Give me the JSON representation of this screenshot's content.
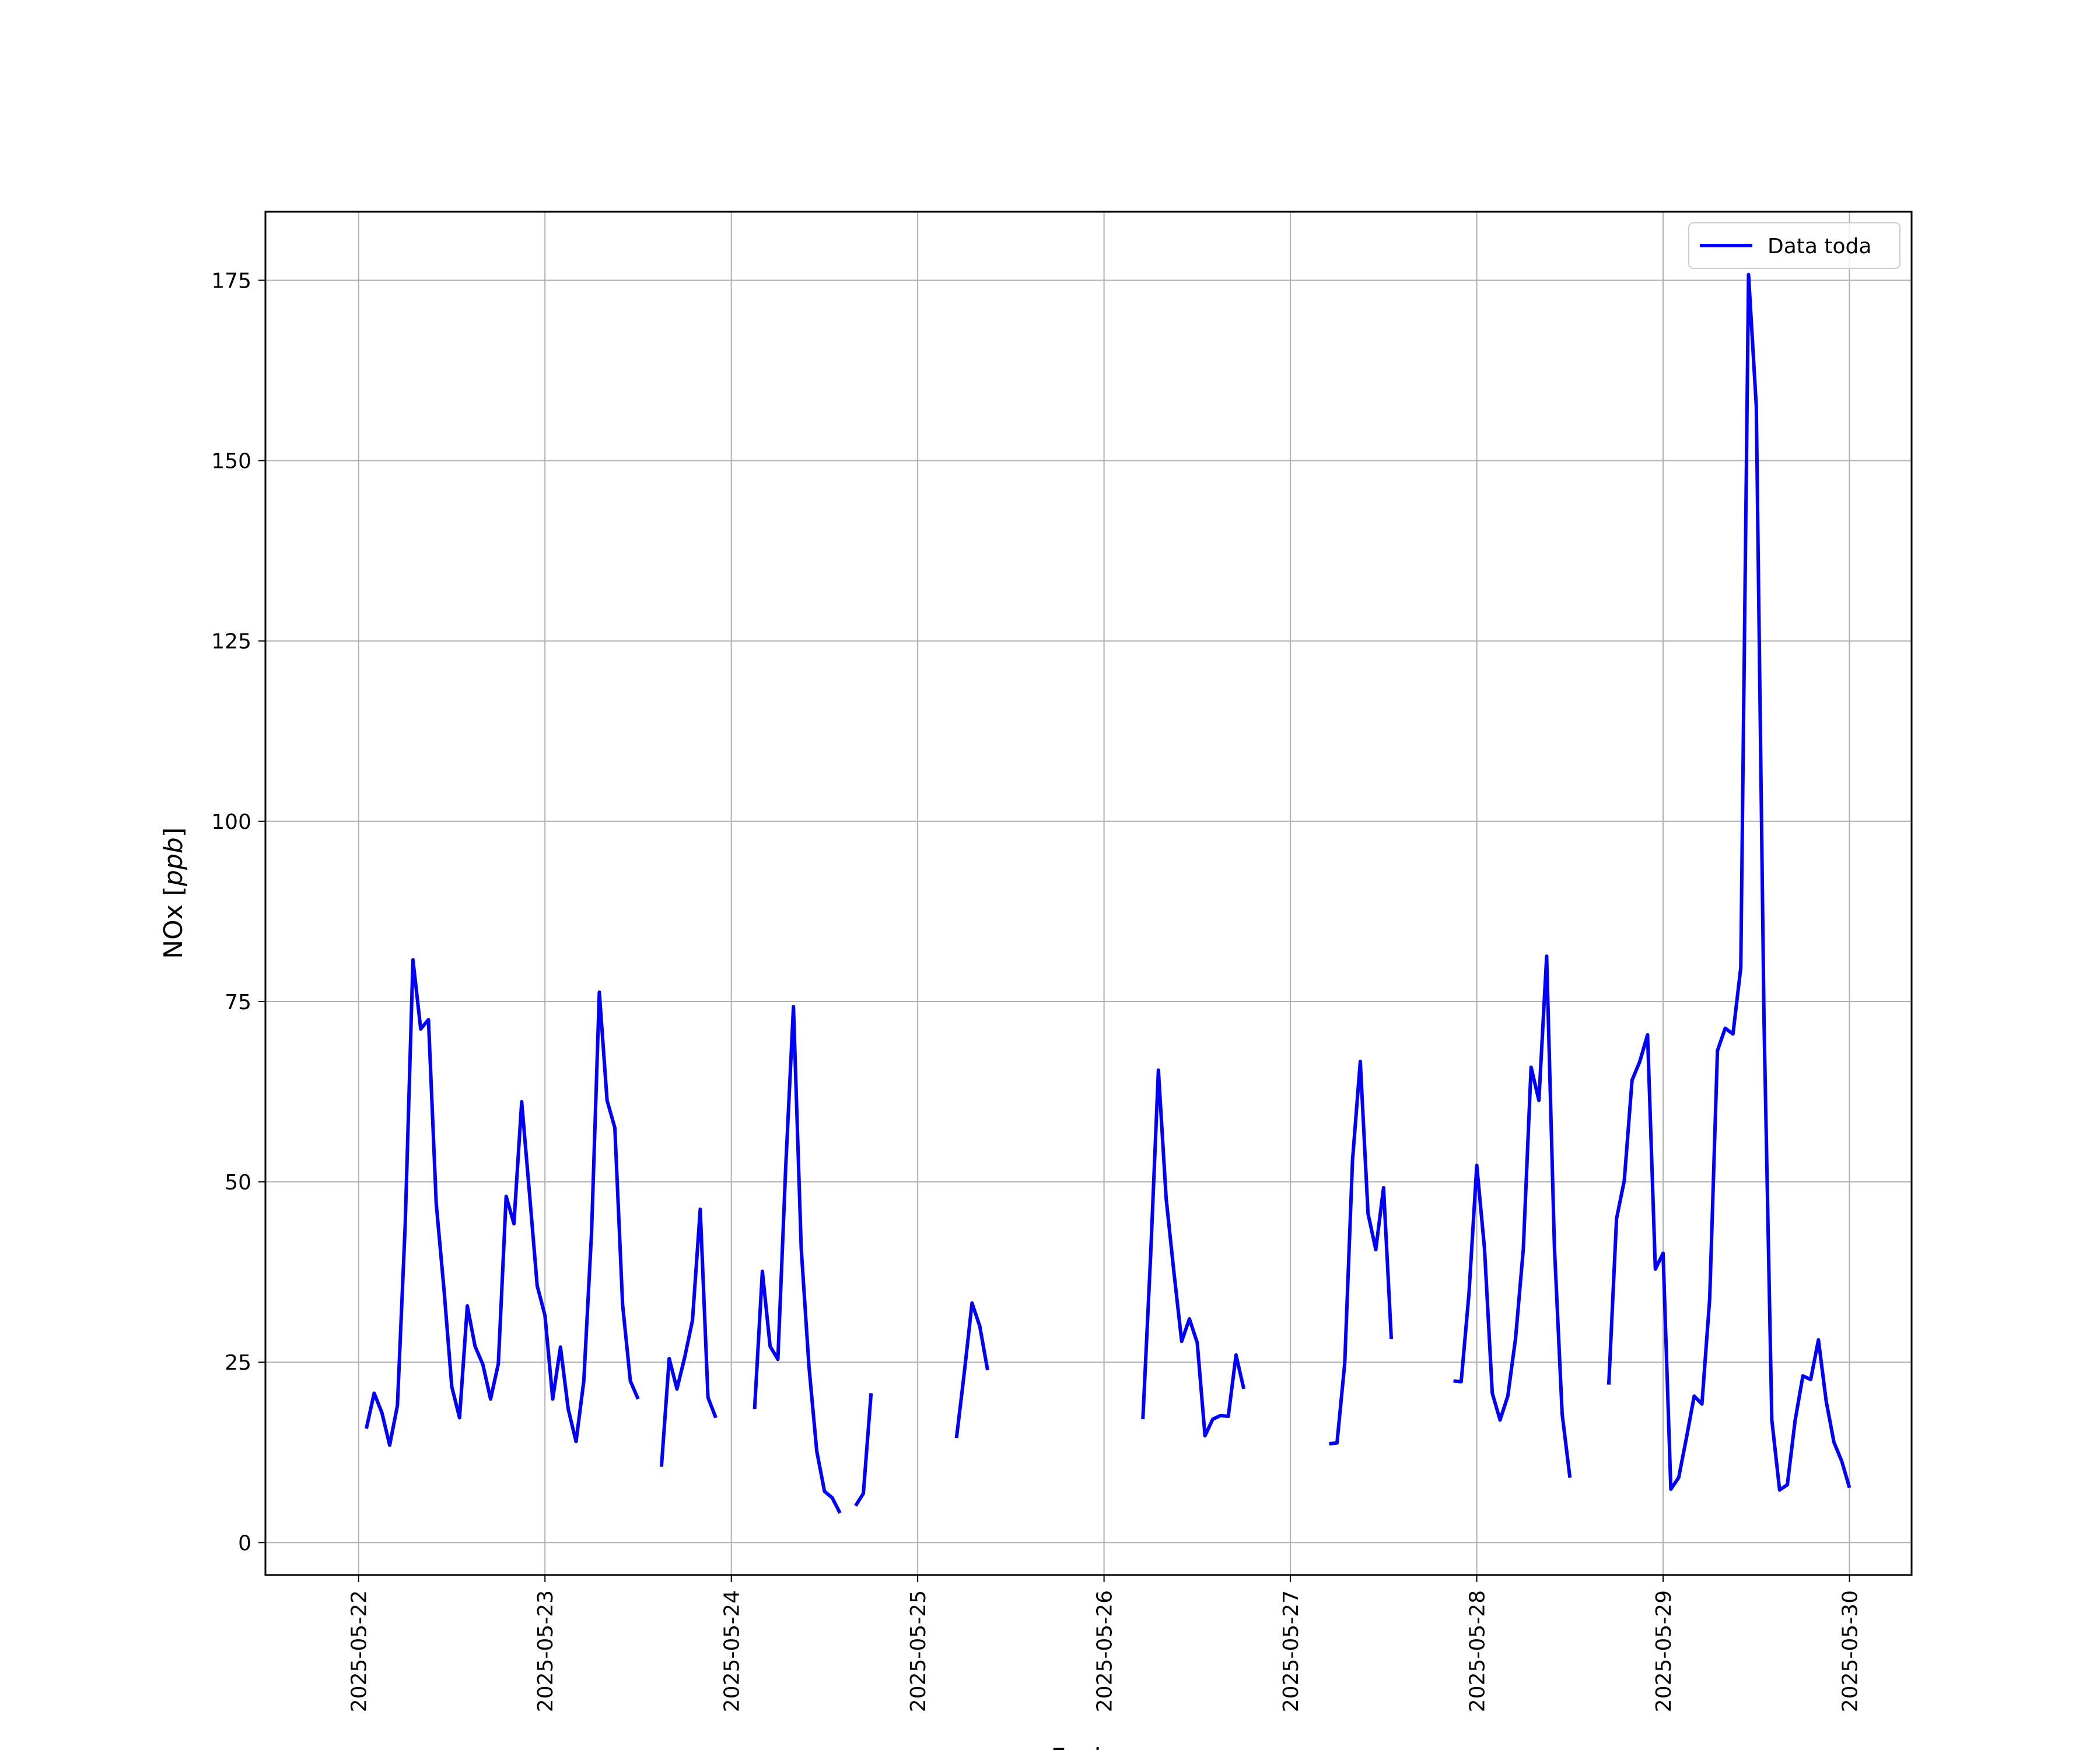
{
  "chart_data": {
    "type": "line",
    "title": "",
    "xlabel": "Fecha",
    "ylabel": "NOx",
    "ylabel_unit": "ppb",
    "ylabel_open": "[",
    "ylabel_close": "]",
    "xlim": [
      "2025-05-21 12:00",
      "2025-05-30 08:00"
    ],
    "ylim": [
      -4.5,
      184.5
    ],
    "grid": true,
    "legend_position": "top-right",
    "x_ticks": [
      "2025-05-22",
      "2025-05-23",
      "2025-05-24",
      "2025-05-25",
      "2025-05-26",
      "2025-05-27",
      "2025-05-28",
      "2025-05-29",
      "2025-05-30"
    ],
    "y_ticks": [
      0,
      25,
      50,
      75,
      100,
      125,
      150,
      175
    ],
    "series": [
      {
        "name": "Data toda",
        "color": "#0000ff",
        "segments": [
          [
            [
              "2025-05-22 01:00",
              15.8
            ],
            [
              "2025-05-22 02:00",
              20.7
            ],
            [
              "2025-05-22 03:00",
              18.0
            ],
            [
              "2025-05-22 04:00",
              13.5
            ],
            [
              "2025-05-22 05:00",
              19.0
            ],
            [
              "2025-05-22 06:00",
              44.0
            ],
            [
              "2025-05-22 07:00",
              80.8
            ],
            [
              "2025-05-22 08:00",
              71.2
            ],
            [
              "2025-05-22 09:00",
              72.5
            ],
            [
              "2025-05-22 10:00",
              47.0
            ],
            [
              "2025-05-22 11:00",
              35.0
            ],
            [
              "2025-05-22 12:00",
              21.6
            ],
            [
              "2025-05-22 13:00",
              17.3
            ],
            [
              "2025-05-22 14:00",
              32.8
            ],
            [
              "2025-05-22 15:00",
              27.2
            ],
            [
              "2025-05-22 16:00",
              24.7
            ],
            [
              "2025-05-22 17:00",
              19.9
            ],
            [
              "2025-05-22 18:00",
              24.8
            ],
            [
              "2025-05-22 19:00",
              48.0
            ],
            [
              "2025-05-22 20:00",
              44.2
            ],
            [
              "2025-05-22 21:00",
              61.1
            ],
            [
              "2025-05-22 22:00",
              48.5
            ],
            [
              "2025-05-22 23:00",
              35.6
            ],
            [
              "2025-05-23 00:00",
              31.5
            ],
            [
              "2025-05-23 01:00",
              19.9
            ],
            [
              "2025-05-23 02:00",
              27.1
            ],
            [
              "2025-05-23 03:00",
              18.5
            ],
            [
              "2025-05-23 04:00",
              14.0
            ],
            [
              "2025-05-23 05:00",
              22.4
            ],
            [
              "2025-05-23 06:00",
              43.0
            ],
            [
              "2025-05-23 07:00",
              76.3
            ],
            [
              "2025-05-23 08:00",
              61.3
            ],
            [
              "2025-05-23 09:00",
              57.5
            ],
            [
              "2025-05-23 10:00",
              33.0
            ],
            [
              "2025-05-23 11:00",
              22.4
            ],
            [
              "2025-05-23 12:00",
              19.9
            ]
          ],
          [
            [
              "2025-05-23 15:00",
              10.5
            ],
            [
              "2025-05-23 16:00",
              25.5
            ],
            [
              "2025-05-23 17:00",
              21.3
            ],
            [
              "2025-05-23 18:00",
              25.7
            ],
            [
              "2025-05-23 19:00",
              30.8
            ],
            [
              "2025-05-23 20:00",
              46.2
            ],
            [
              "2025-05-23 21:00",
              20.1
            ],
            [
              "2025-05-23 22:00",
              17.3
            ]
          ],
          [
            [
              "2025-05-24 03:00",
              18.5
            ],
            [
              "2025-05-24 04:00",
              37.6
            ],
            [
              "2025-05-24 05:00",
              27.2
            ],
            [
              "2025-05-24 06:00",
              25.4
            ],
            [
              "2025-05-24 07:00",
              52.0
            ],
            [
              "2025-05-24 08:00",
              74.3
            ],
            [
              "2025-05-24 09:00",
              40.8
            ],
            [
              "2025-05-24 10:00",
              24.4
            ],
            [
              "2025-05-24 11:00",
              12.7
            ],
            [
              "2025-05-24 12:00",
              7.1
            ],
            [
              "2025-05-24 13:00",
              6.2
            ],
            [
              "2025-05-24 14:00",
              4.1
            ]
          ],
          [
            [
              "2025-05-24 16:00",
              5.1
            ],
            [
              "2025-05-24 17:00",
              6.8
            ],
            [
              "2025-05-24 18:00",
              20.7
            ]
          ],
          [
            [
              "2025-05-25 05:00",
              14.5
            ],
            [
              "2025-05-25 06:00",
              23.5
            ],
            [
              "2025-05-25 07:00",
              33.2
            ],
            [
              "2025-05-25 08:00",
              30.0
            ],
            [
              "2025-05-25 09:00",
              23.9
            ]
          ],
          [
            [
              "2025-05-26 05:00",
              17.1
            ],
            [
              "2025-05-26 06:00",
              39.8
            ],
            [
              "2025-05-26 07:00",
              65.5
            ],
            [
              "2025-05-26 08:00",
              47.7
            ],
            [
              "2025-05-26 09:00",
              37.5
            ],
            [
              "2025-05-26 10:00",
              27.9
            ],
            [
              "2025-05-26 11:00",
              31.0
            ],
            [
              "2025-05-26 12:00",
              27.7
            ],
            [
              "2025-05-26 13:00",
              14.8
            ],
            [
              "2025-05-26 14:00",
              17.1
            ],
            [
              "2025-05-26 15:00",
              17.6
            ],
            [
              "2025-05-26 16:00",
              17.5
            ],
            [
              "2025-05-26 17:00",
              26.0
            ],
            [
              "2025-05-26 18:00",
              21.3
            ]
          ],
          [
            [
              "2025-05-27 05:00",
              13.7
            ],
            [
              "2025-05-27 06:00",
              13.8
            ],
            [
              "2025-05-27 07:00",
              24.9
            ],
            [
              "2025-05-27 08:00",
              53.0
            ],
            [
              "2025-05-27 09:00",
              66.7
            ],
            [
              "2025-05-27 10:00",
              45.6
            ],
            [
              "2025-05-27 11:00",
              40.6
            ],
            [
              "2025-05-27 12:00",
              49.2
            ],
            [
              "2025-05-27 13:00",
              28.2
            ]
          ],
          [
            [
              "2025-05-27 21:00",
              22.4
            ],
            [
              "2025-05-27 22:00",
              22.3
            ],
            [
              "2025-05-27 23:00",
              34.6
            ],
            [
              "2025-05-28 00:00",
              52.3
            ],
            [
              "2025-05-28 01:00",
              40.7
            ],
            [
              "2025-05-28 02:00",
              20.7
            ],
            [
              "2025-05-28 03:00",
              17.0
            ],
            [
              "2025-05-28 04:00",
              20.3
            ],
            [
              "2025-05-28 05:00",
              28.3
            ],
            [
              "2025-05-28 06:00",
              40.7
            ],
            [
              "2025-05-28 07:00",
              65.9
            ],
            [
              "2025-05-28 08:00",
              61.3
            ],
            [
              "2025-05-28 09:00",
              81.3
            ],
            [
              "2025-05-28 10:00",
              41.0
            ],
            [
              "2025-05-28 11:00",
              17.8
            ],
            [
              "2025-05-28 12:00",
              9.0
            ]
          ],
          [
            [
              "2025-05-28 17:00",
              21.9
            ],
            [
              "2025-05-28 18:00",
              44.9
            ],
            [
              "2025-05-28 19:00",
              50.2
            ],
            [
              "2025-05-28 20:00",
              64.1
            ],
            [
              "2025-05-28 21:00",
              66.7
            ],
            [
              "2025-05-28 22:00",
              70.4
            ],
            [
              "2025-05-28 23:00",
              37.9
            ],
            [
              "2025-05-29 00:00",
              40.1
            ],
            [
              "2025-05-29 01:00",
              7.4
            ],
            [
              "2025-05-29 02:00",
              9.0
            ],
            [
              "2025-05-29 03:00",
              14.5
            ],
            [
              "2025-05-29 04:00",
              20.3
            ],
            [
              "2025-05-29 05:00",
              19.2
            ],
            [
              "2025-05-29 06:00",
              33.8
            ],
            [
              "2025-05-29 07:00",
              68.2
            ],
            [
              "2025-05-29 08:00",
              71.3
            ],
            [
              "2025-05-29 09:00",
              70.5
            ],
            [
              "2025-05-29 10:00",
              79.7
            ],
            [
              "2025-05-29 11:00",
              175.8
            ],
            [
              "2025-05-29 12:00",
              157.5
            ],
            [
              "2025-05-29 13:00",
              72.0
            ],
            [
              "2025-05-29 14:00",
              17.0
            ],
            [
              "2025-05-29 15:00",
              7.3
            ],
            [
              "2025-05-29 16:00",
              8.0
            ],
            [
              "2025-05-29 17:00",
              16.9
            ],
            [
              "2025-05-29 18:00",
              23.1
            ],
            [
              "2025-05-29 19:00",
              22.6
            ],
            [
              "2025-05-29 20:00",
              28.1
            ],
            [
              "2025-05-29 21:00",
              19.6
            ],
            [
              "2025-05-29 22:00",
              13.9
            ],
            [
              "2025-05-29 23:00",
              11.3
            ],
            [
              "2025-05-30 00:00",
              7.6
            ]
          ]
        ]
      }
    ]
  }
}
